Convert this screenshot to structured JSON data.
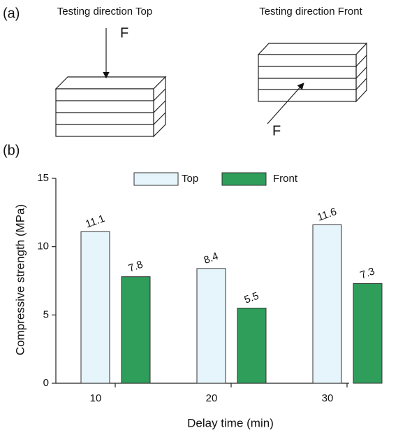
{
  "panel_labels": [
    "(a)",
    "(b)"
  ],
  "diagram": {
    "left_title": "Testing direction Top",
    "right_title": "Testing direction Front",
    "left_force": "F",
    "right_force": "F"
  },
  "chart_data": {
    "type": "bar",
    "y_label": "Compressive strength (MPa)",
    "x_label": "Delay time (min)",
    "categories": [
      "10",
      "20",
      "30"
    ],
    "series": [
      {
        "name": "Top",
        "color": "#e6f4fb",
        "values": [
          11.1,
          8.4,
          11.6
        ]
      },
      {
        "name": "Front",
        "color": "#2e9e5a",
        "values": [
          7.8,
          5.5,
          7.3
        ]
      }
    ],
    "ylim": [
      0,
      15
    ],
    "yticks": [
      0,
      5,
      10,
      15
    ]
  }
}
